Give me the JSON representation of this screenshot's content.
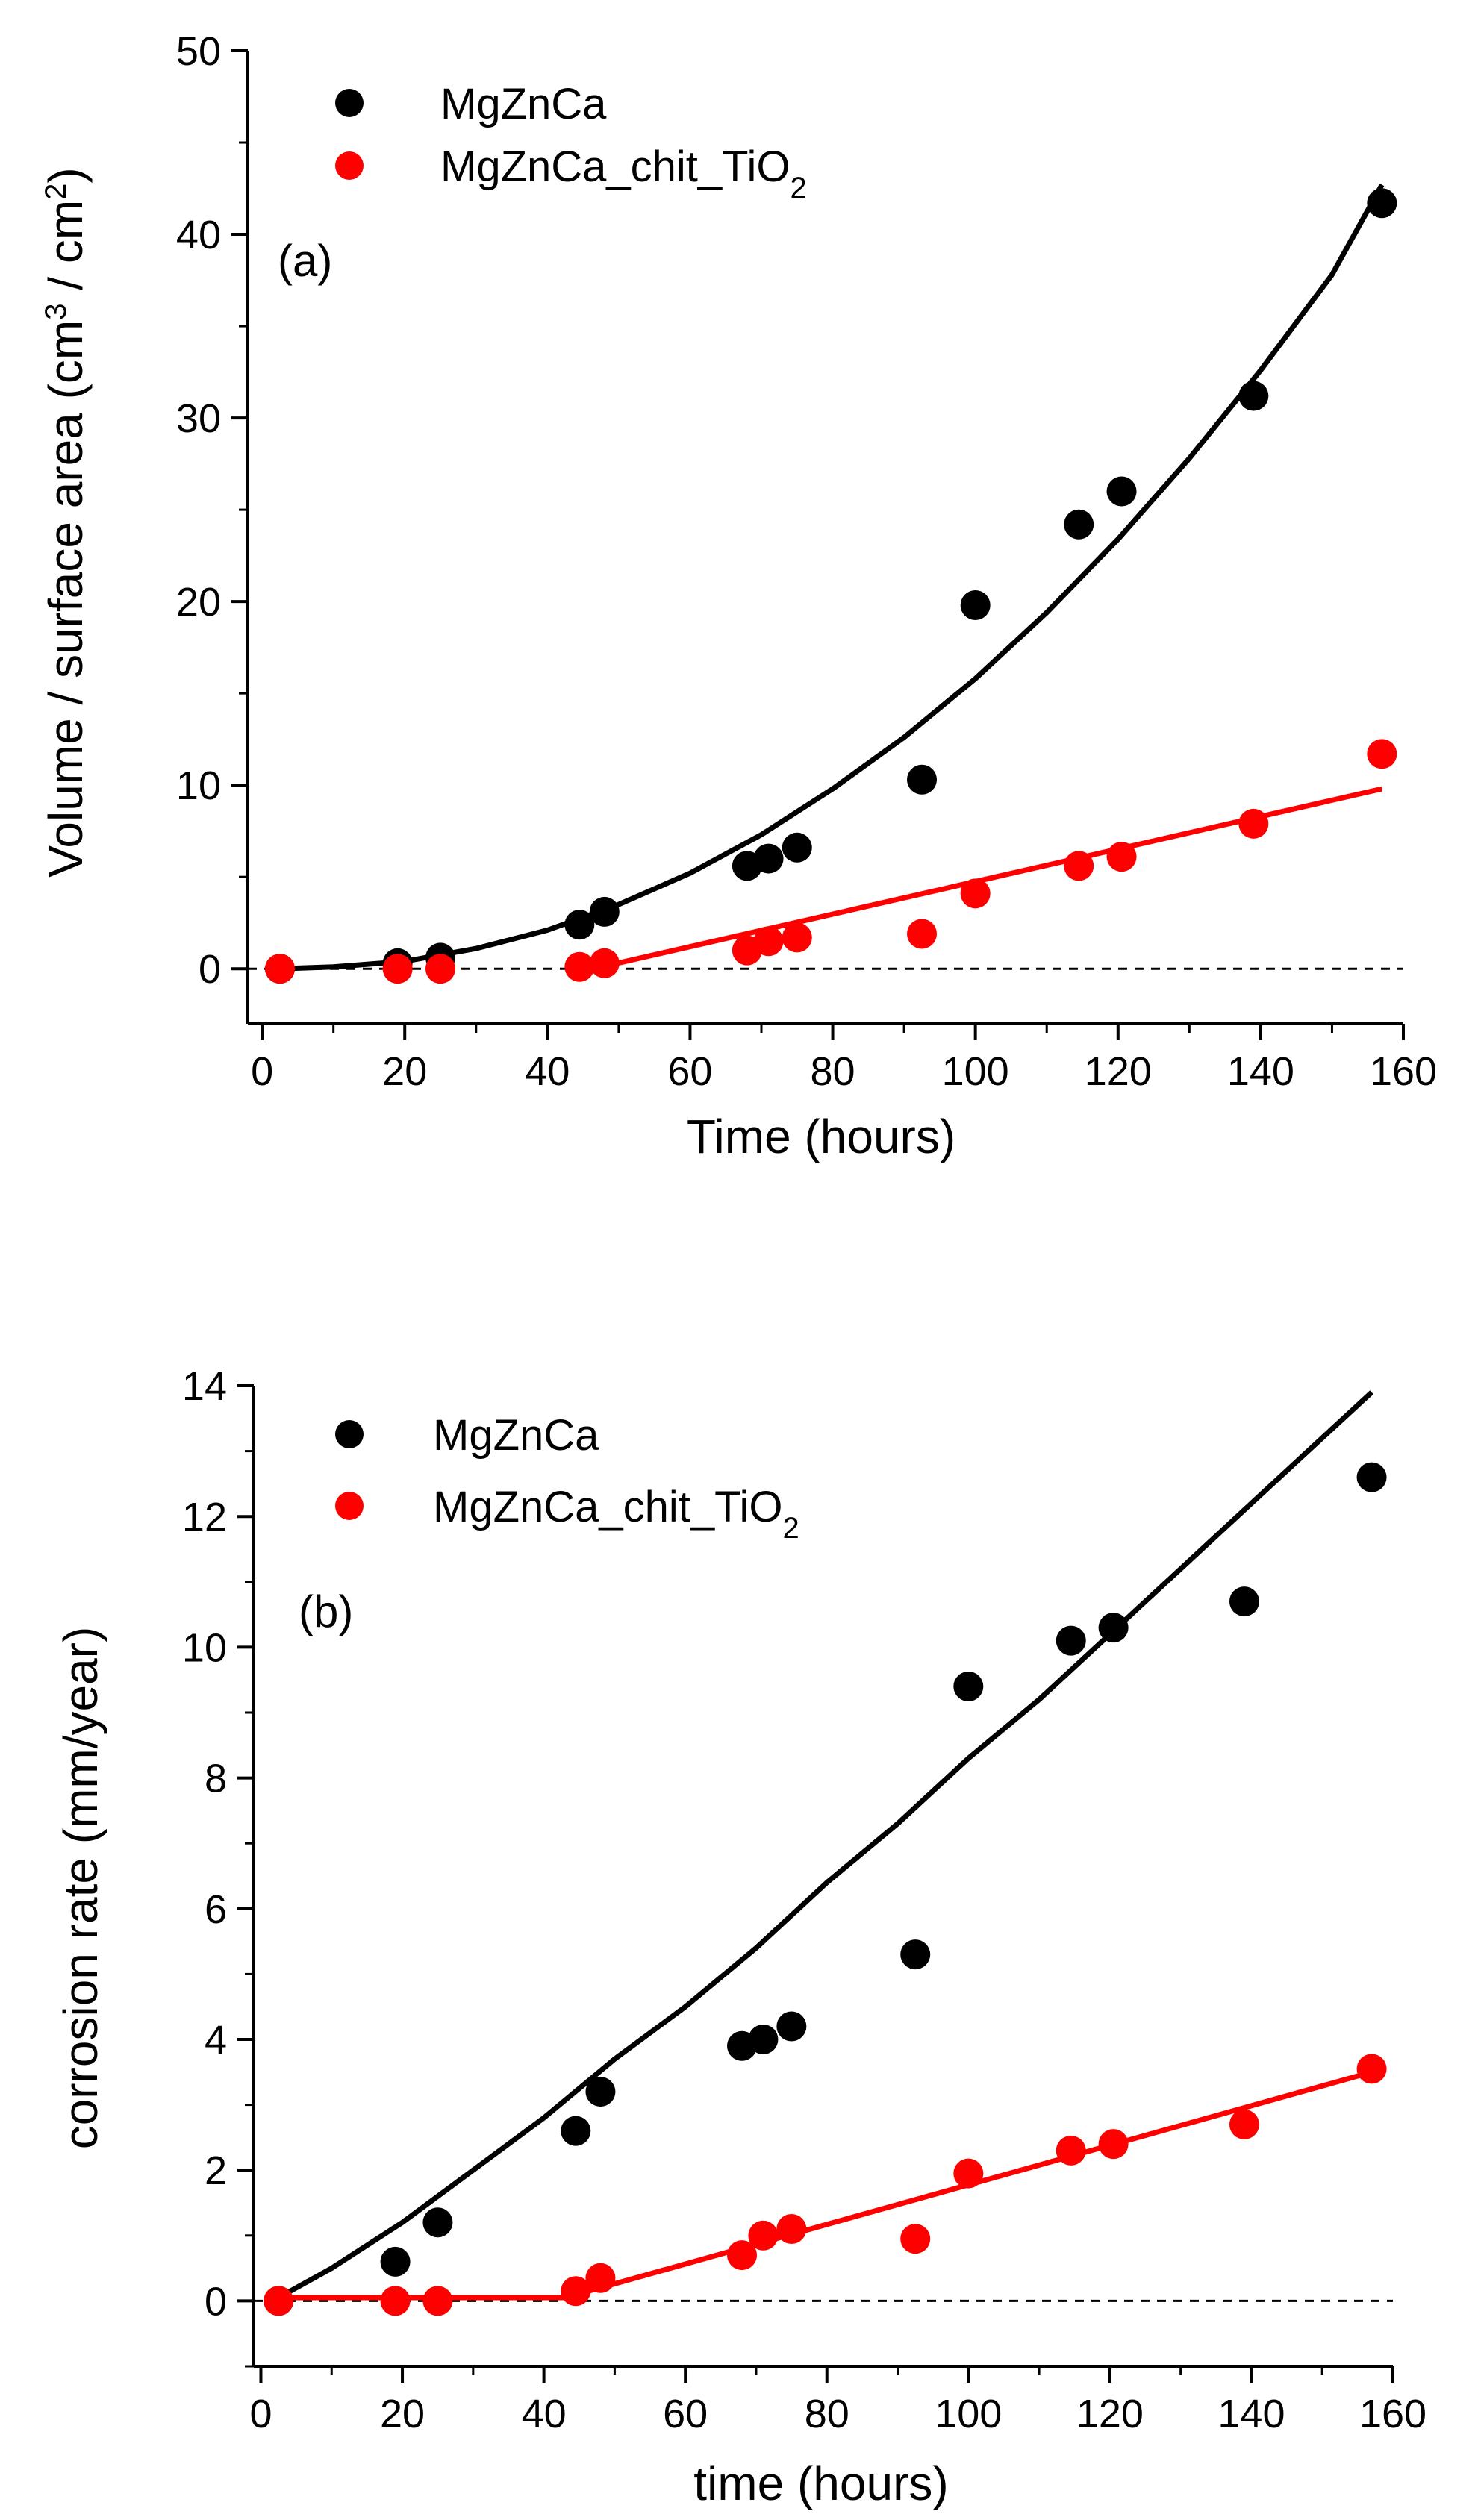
{
  "colors": {
    "series_1": "#000000",
    "series_2": "#ff0000",
    "axis": "#000000"
  },
  "chart_data": [
    {
      "type": "scatter",
      "panel_label": "(a)",
      "xlabel": "Time (hours)",
      "ylabel": "Volume / surface area (cm",
      "ylabel_sup1": "3",
      "ylabel_mid": " / cm",
      "ylabel_sup2": "2",
      "ylabel_end": ")",
      "xlim": [
        -2,
        160
      ],
      "ylim": [
        -3,
        50
      ],
      "x_ticks": [
        0,
        20,
        40,
        60,
        80,
        100,
        120,
        140,
        160
      ],
      "x_tick_labels": [
        "0",
        "20",
        "40",
        "60",
        "80",
        "100",
        "120",
        "140",
        "160"
      ],
      "y_ticks": [
        0,
        10,
        20,
        30,
        40,
        50
      ],
      "y_tick_labels": [
        "0",
        "10",
        "20",
        "30",
        "40",
        "50"
      ],
      "reference_line_y": 0,
      "legend_position": "top-left",
      "series": [
        {
          "name": "MgZnCa",
          "points": [
            [
              2.5,
              0
            ],
            [
              19,
              0.3
            ],
            [
              25,
              0.6
            ],
            [
              44.5,
              2.4
            ],
            [
              48,
              3.1
            ],
            [
              68,
              5.6
            ],
            [
              71,
              6.0
            ],
            [
              75,
              6.6
            ],
            [
              92.5,
              10.3
            ],
            [
              100,
              19.8
            ],
            [
              114.5,
              24.2
            ],
            [
              120.5,
              26.0
            ],
            [
              139,
              31.2
            ],
            [
              157,
              41.7
            ]
          ],
          "fit": [
            [
              2.5,
              0
            ],
            [
              10,
              0.1
            ],
            [
              20,
              0.4
            ],
            [
              30,
              1.1
            ],
            [
              40,
              2.1
            ],
            [
              50,
              3.5
            ],
            [
              60,
              5.2
            ],
            [
              70,
              7.3
            ],
            [
              80,
              9.8
            ],
            [
              90,
              12.6
            ],
            [
              100,
              15.8
            ],
            [
              110,
              19.4
            ],
            [
              120,
              23.4
            ],
            [
              130,
              27.8
            ],
            [
              140,
              32.6
            ],
            [
              150,
              37.8
            ],
            [
              157,
              42.7
            ]
          ]
        },
        {
          "name": "MgZnCa_chit_TiO",
          "name_sub": "2",
          "points": [
            [
              2.5,
              0
            ],
            [
              19,
              0
            ],
            [
              25,
              0
            ],
            [
              44.5,
              0.1
            ],
            [
              48,
              0.3
            ],
            [
              68,
              1.0
            ],
            [
              71,
              1.5
            ],
            [
              75,
              1.7
            ],
            [
              92.5,
              1.9
            ],
            [
              100,
              4.1
            ],
            [
              114.5,
              5.6
            ],
            [
              120.5,
              6.1
            ],
            [
              139,
              7.9
            ],
            [
              157,
              11.7
            ]
          ],
          "fit": [
            [
              47,
              0.05
            ],
            [
              157,
              9.8
            ]
          ]
        }
      ]
    },
    {
      "type": "scatter",
      "panel_label": "(b)",
      "xlabel": "time (hours)",
      "ylabel": "corrosion rate (mm/year)",
      "xlim": [
        -1,
        160
      ],
      "ylim": [
        -1,
        14
      ],
      "x_ticks": [
        0,
        20,
        40,
        60,
        80,
        100,
        120,
        140,
        160
      ],
      "x_tick_labels": [
        "0",
        "20",
        "40",
        "60",
        "80",
        "100",
        "120",
        "140",
        "160"
      ],
      "y_ticks": [
        0,
        2,
        4,
        6,
        8,
        10,
        12,
        14
      ],
      "y_tick_labels": [
        "0",
        "2",
        "4",
        "6",
        "8",
        "10",
        "12",
        "14"
      ],
      "reference_line_y": 0,
      "legend_position": "top-left",
      "series": [
        {
          "name": "MgZnCa",
          "points": [
            [
              2.5,
              0
            ],
            [
              19,
              0.6
            ],
            [
              25,
              1.2
            ],
            [
              44.5,
              2.6
            ],
            [
              48,
              3.2
            ],
            [
              68,
              3.9
            ],
            [
              71,
              4.0
            ],
            [
              75,
              4.2
            ],
            [
              92.5,
              5.3
            ],
            [
              100,
              9.4
            ],
            [
              114.5,
              10.1
            ],
            [
              120.5,
              10.3
            ],
            [
              139,
              10.7
            ],
            [
              157,
              12.6
            ]
          ],
          "fit": [
            [
              2.5,
              0.05
            ],
            [
              10,
              0.5
            ],
            [
              20,
              1.2
            ],
            [
              30,
              2.0
            ],
            [
              40,
              2.8
            ],
            [
              50,
              3.7
            ],
            [
              60,
              4.5
            ],
            [
              70,
              5.4
            ],
            [
              80,
              6.4
            ],
            [
              90,
              7.3
            ],
            [
              100,
              8.3
            ],
            [
              110,
              9.2
            ],
            [
              120,
              10.2
            ],
            [
              130,
              11.2
            ],
            [
              140,
              12.2
            ],
            [
              150,
              13.2
            ],
            [
              157,
              13.9
            ]
          ]
        },
        {
          "name": "MgZnCa_chit_TiO",
          "name_sub": "2",
          "points": [
            [
              2.5,
              0
            ],
            [
              19,
              0
            ],
            [
              25,
              0
            ],
            [
              44.5,
              0.15
            ],
            [
              48,
              0.35
            ],
            [
              68,
              0.7
            ],
            [
              71,
              1.0
            ],
            [
              75,
              1.1
            ],
            [
              92.5,
              0.95
            ],
            [
              100,
              1.95
            ],
            [
              114.5,
              2.3
            ],
            [
              120.5,
              2.4
            ],
            [
              139,
              2.7
            ],
            [
              157,
              3.55
            ]
          ],
          "fit": [
            [
              2.5,
              0.05
            ],
            [
              43,
              0.05
            ],
            [
              157,
              3.5
            ]
          ]
        }
      ]
    }
  ]
}
